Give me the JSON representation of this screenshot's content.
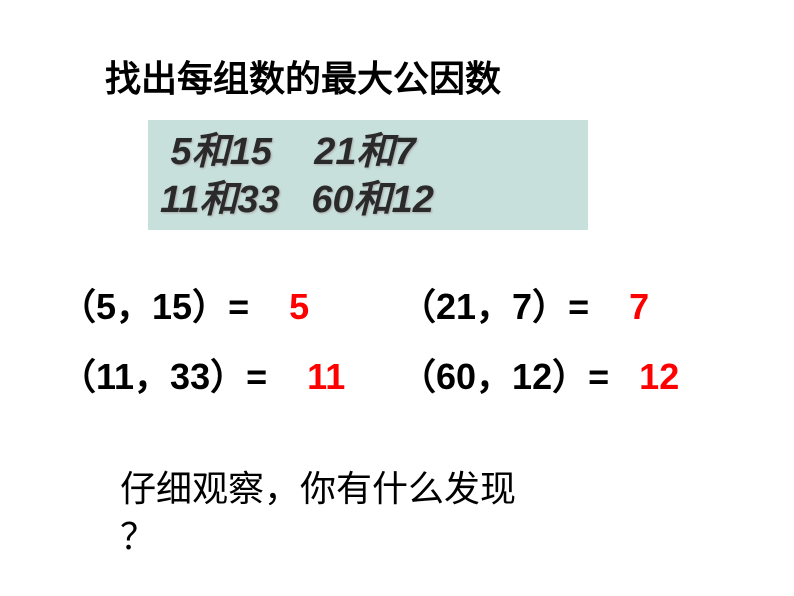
{
  "title": "找出每组数的最大公因数",
  "box": {
    "background_color": "#c8e0dc",
    "text_color": "#2a2a2a",
    "shadow_color": "#aaaaaa",
    "font_size": 38,
    "line1": " 5和15    21和7",
    "line2": "11和33   60和12"
  },
  "answers": {
    "font_size": 36,
    "result_color": "#ff0000",
    "rows": [
      {
        "left": {
          "expr": "（5，15）=",
          "result": "5"
        },
        "right": {
          "expr": "（21，7）=",
          "result": "7"
        }
      },
      {
        "left": {
          "expr": "（11，33）=",
          "result": "11"
        },
        "right": {
          "expr": "（60，12）=",
          "result": "12"
        }
      }
    ]
  },
  "footer": {
    "line1": "仔细观察，你有什么发现",
    "line2": "？"
  },
  "colors": {
    "background": "#ffffff",
    "text": "#000000"
  }
}
